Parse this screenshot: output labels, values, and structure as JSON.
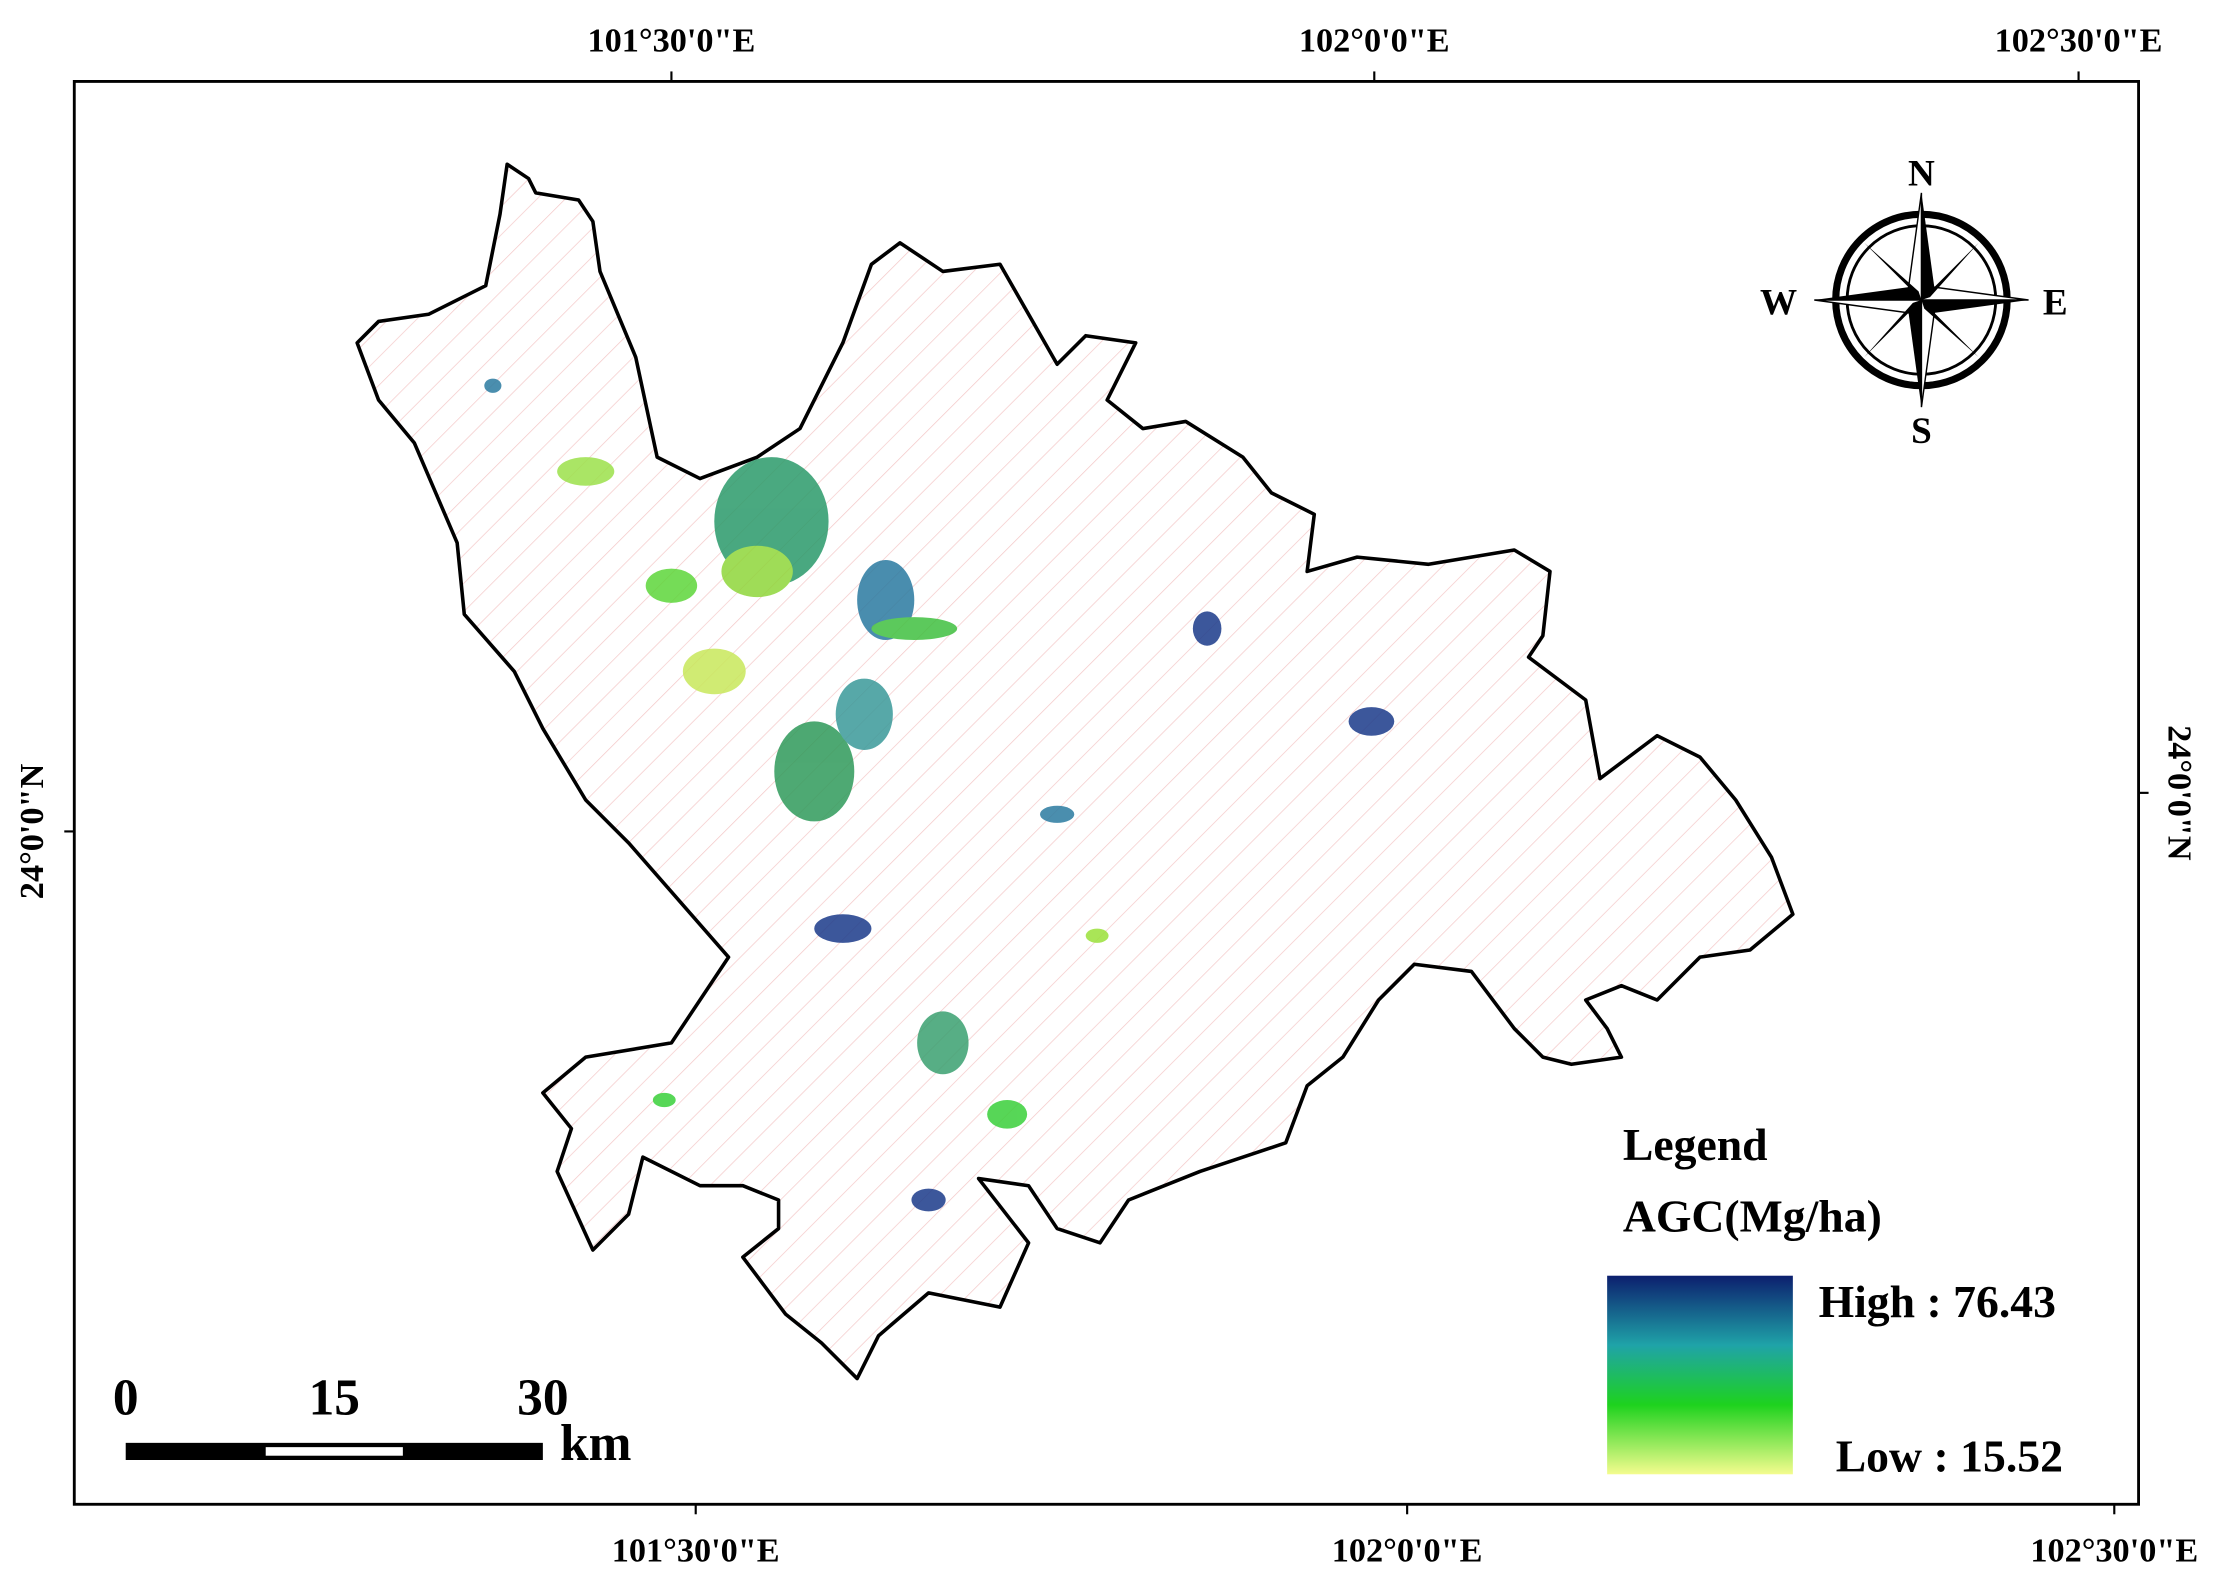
{
  "map": {
    "top_labels": [
      "101°30'0\"E",
      "102°0'0\"E",
      "102°30'0\"E"
    ],
    "bottom_labels": [
      "101°30'0\"E",
      "102°0'0\"E",
      "102°30'0\"E"
    ],
    "left_label": "24°0'0\"N",
    "right_label": "24°0'0\"N",
    "north_arrow": {
      "n": "N",
      "e": "E",
      "s": "S",
      "w": "W"
    },
    "scale_bar": {
      "ticks": [
        0,
        15,
        30
      ],
      "unit": "km"
    },
    "legend": {
      "title": "Legend",
      "field": "AGC(Mg/ha)",
      "high": "High : 76.43",
      "low": "Low : 15.52"
    }
  }
}
